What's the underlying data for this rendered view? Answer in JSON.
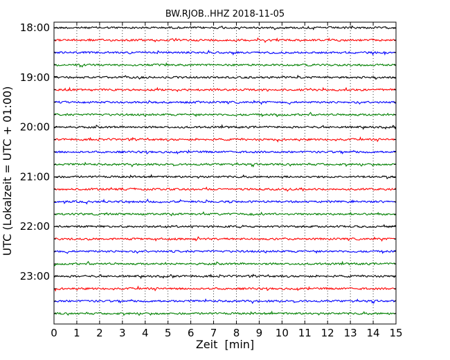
{
  "chart_data": {
    "type": "line",
    "title": "BW.RJOB..HHZ 2018-11-05",
    "xlabel": "Zeit  [min]",
    "ylabel": "UTC (Lokalzeit = UTC + 01:00)",
    "xlim": [
      0,
      15
    ],
    "x_ticks": [
      "0",
      "1",
      "2",
      "3",
      "4",
      "5",
      "6",
      "7",
      "8",
      "9",
      "10",
      "11",
      "12",
      "13",
      "14",
      "15"
    ],
    "y_tick_labels": [
      "18:00",
      "19:00",
      "20:00",
      "21:00",
      "22:00",
      "23:00"
    ],
    "grid": "vertical dotted",
    "trace_interval_minutes": 15,
    "trace_count": 24,
    "trace_colors": [
      "#000000",
      "#ff0000",
      "#0000ff",
      "#008000"
    ],
    "series": [
      {
        "start": "18:00",
        "color": "#000000"
      },
      {
        "start": "18:15",
        "color": "#ff0000"
      },
      {
        "start": "18:30",
        "color": "#0000ff"
      },
      {
        "start": "18:45",
        "color": "#008000"
      },
      {
        "start": "19:00",
        "color": "#000000"
      },
      {
        "start": "19:15",
        "color": "#ff0000"
      },
      {
        "start": "19:30",
        "color": "#0000ff"
      },
      {
        "start": "19:45",
        "color": "#008000"
      },
      {
        "start": "20:00",
        "color": "#000000"
      },
      {
        "start": "20:15",
        "color": "#ff0000"
      },
      {
        "start": "20:30",
        "color": "#0000ff"
      },
      {
        "start": "20:45",
        "color": "#008000"
      },
      {
        "start": "21:00",
        "color": "#000000"
      },
      {
        "start": "21:15",
        "color": "#ff0000"
      },
      {
        "start": "21:30",
        "color": "#0000ff"
      },
      {
        "start": "21:45",
        "color": "#008000"
      },
      {
        "start": "22:00",
        "color": "#000000"
      },
      {
        "start": "22:15",
        "color": "#ff0000"
      },
      {
        "start": "22:30",
        "color": "#0000ff"
      },
      {
        "start": "22:45",
        "color": "#008000"
      },
      {
        "start": "23:00",
        "color": "#000000"
      },
      {
        "start": "23:15",
        "color": "#ff0000"
      },
      {
        "start": "23:30",
        "color": "#0000ff"
      },
      {
        "start": "23:45",
        "color": "#008000"
      }
    ]
  }
}
